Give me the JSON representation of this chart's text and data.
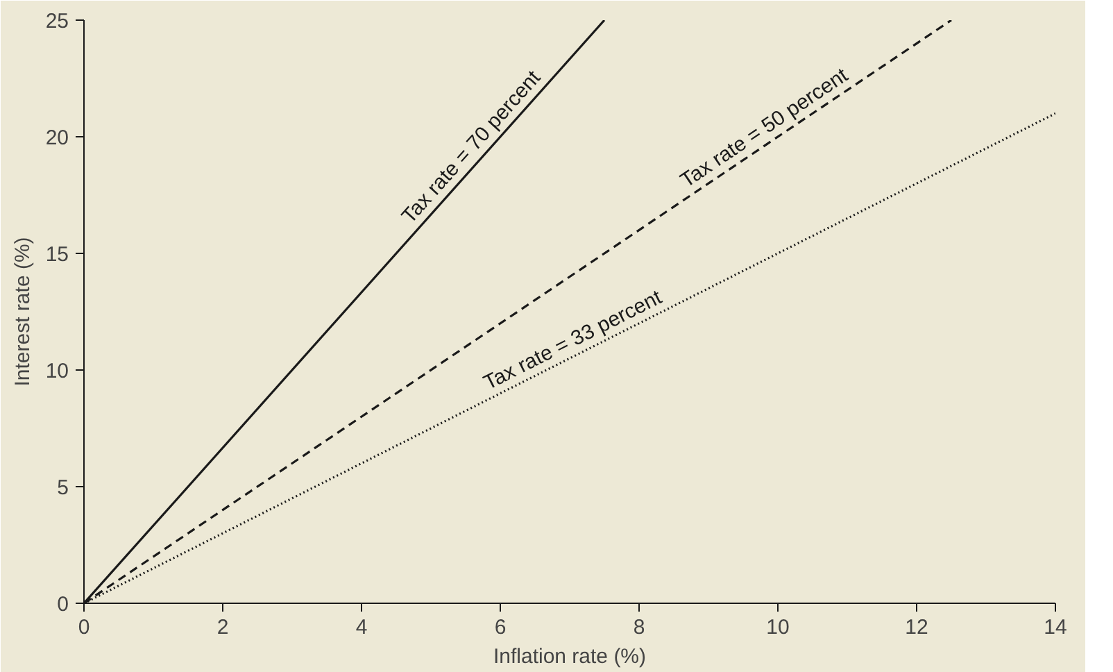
{
  "chart_data": {
    "type": "line",
    "xlabel": "Inflation rate (%)",
    "ylabel": "Interest rate (%)",
    "xlim": [
      0,
      14
    ],
    "ylim": [
      0,
      25
    ],
    "xticks": [
      0,
      2,
      4,
      6,
      8,
      10,
      12,
      14
    ],
    "yticks": [
      0,
      5,
      10,
      15,
      20,
      25
    ],
    "grid": false,
    "marker": "none",
    "series": [
      {
        "name": "Tax rate = 70 percent",
        "color": "#1a1a1a",
        "line_style": "solid",
        "x": [
          0,
          7.5
        ],
        "values": [
          0,
          25
        ]
      },
      {
        "name": "Tax rate = 50 percent",
        "color": "#1a1a1a",
        "line_style": "dashed",
        "x": [
          0,
          12.5
        ],
        "values": [
          0,
          25
        ]
      },
      {
        "name": "Tax rate = 33 percent",
        "color": "#1a1a1a",
        "line_style": "dotted",
        "x": [
          0,
          14
        ],
        "values": [
          0,
          21
        ]
      }
    ]
  }
}
